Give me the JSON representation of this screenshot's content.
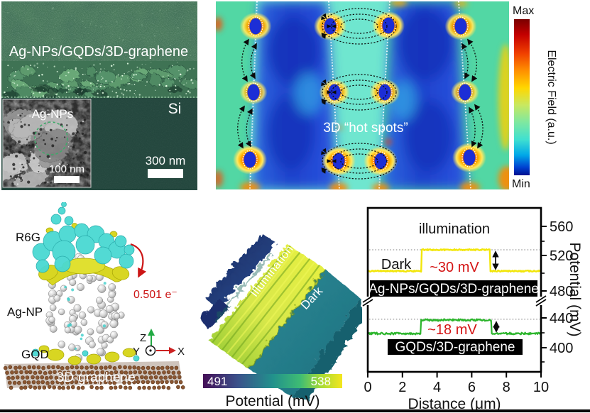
{
  "sem_panel": {
    "label": "Ag-NPs/GQDs/3D-graphene",
    "substrate_label": "Si",
    "scale_bar": "300 nm",
    "inset_label": "Ag-NPs",
    "inset_scale_bar": "100 nm"
  },
  "field_panel": {
    "annotation": "3D “hot spots”",
    "colorbar_max": "Max",
    "colorbar_min": "Min",
    "colorbar_label": "Electric Field (a.u.)"
  },
  "dft_panel": {
    "molecule_label": "R6G",
    "nanoparticle_label": "Ag-NP",
    "gqd_label": "GQD",
    "graphene_label": "3D-graphene",
    "charge_transfer": "0.501 e⁻",
    "axis_x": "X",
    "axis_y": "Y",
    "axis_z": "Z"
  },
  "kpfm_panel": {
    "bright_label": "Illumination",
    "dark_label": "Dark",
    "colorbar_min": "491",
    "colorbar_max": "538",
    "colorbar_label": "Potential (mV)"
  },
  "chart_data": {
    "type": "line",
    "title": "",
    "xlabel": "Distance (μm)",
    "ylabel": "Potential (mV)",
    "xlim": [
      0,
      10
    ],
    "x_ticks": [
      0,
      2,
      4,
      6,
      8,
      10
    ],
    "y_ticks": [
      560,
      520,
      480,
      440,
      400
    ],
    "axis_break_between_mV": [
      455,
      475
    ],
    "grid": "off",
    "legend": "banners inside plot",
    "annotations": {
      "illumination": "illumination",
      "dark": "Dark"
    },
    "series": [
      {
        "name": "Ag-NPs/GQDs/3D-graphene",
        "color": "#f2e60a",
        "dark_level_mV": 505,
        "illuminated_level_mV": 533,
        "step_up_um": 3.1,
        "step_down_um": 7.05,
        "delta_label": "~30 mV",
        "dotted_reference_mV": 533
      },
      {
        "name": "GQDs/3D-graphene",
        "color": "#2cb52c",
        "dark_level_mV": 422,
        "illuminated_level_mV": 440,
        "step_up_um": 3.05,
        "step_down_um": 7.15,
        "delta_label": "~18 mV",
        "dotted_reference_mV": 441
      }
    ]
  }
}
